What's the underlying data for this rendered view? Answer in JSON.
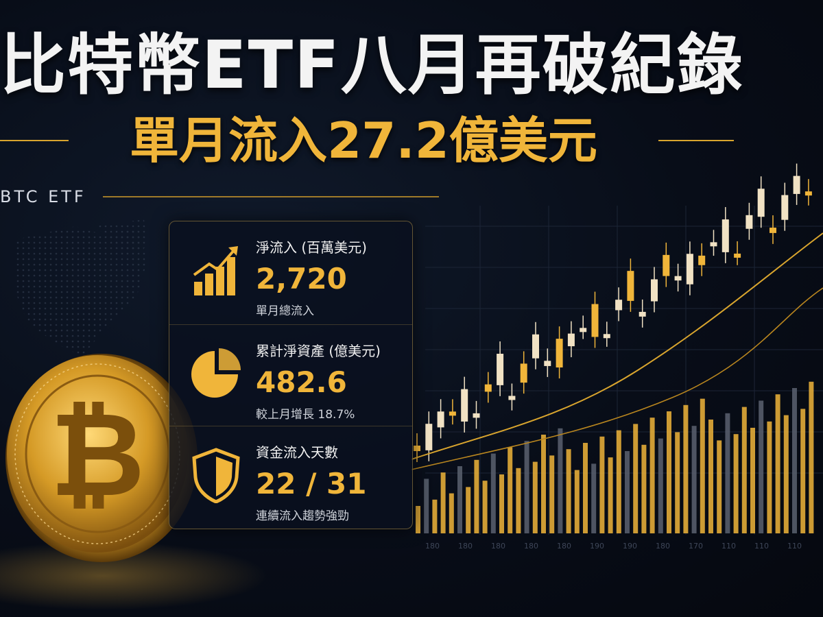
{
  "title": "比特幣ETF八月再破紀錄",
  "subtitle": "單月流入27.2億美元",
  "tag": "BTC ETF",
  "stats": [
    {
      "icon": "growth-bar-chart-icon",
      "label": "淨流入 (百萬美元)",
      "value": "2,720",
      "sub": "單月總流入"
    },
    {
      "icon": "pie-chart-icon",
      "label": "累計淨資產 (億美元)",
      "value": "482.6",
      "sub": "較上月增長 18.7%"
    },
    {
      "icon": "shield-icon",
      "label": "資金流入天數",
      "value": "22 / 31",
      "sub": "連續流入趨勢強勁"
    }
  ],
  "chart_axis_labels": [
    "180",
    "180",
    "180",
    "180",
    "180",
    "190",
    "190",
    "180",
    "170",
    "110",
    "110",
    "110"
  ],
  "colors": {
    "gold": "#f0b53a",
    "cream": "#f1e2c4",
    "gray": "#5b6270",
    "background": "#080d18"
  }
}
